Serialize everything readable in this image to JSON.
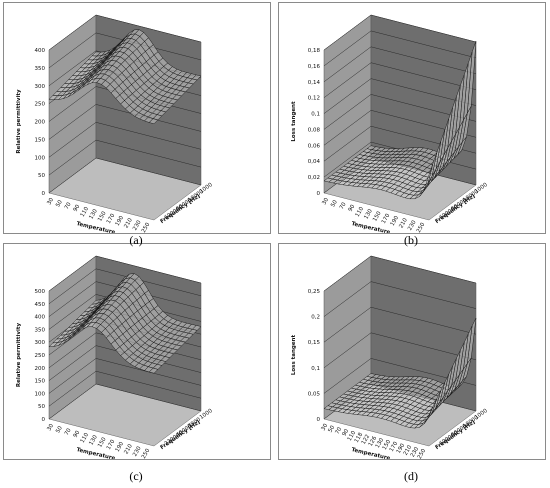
{
  "captions": [
    "(a)",
    "(b)",
    "(c)",
    "(d)"
  ],
  "chart_data": [
    {
      "type": "surface",
      "ylabel": "Relative permittivity",
      "xlabel": "Temperature",
      "zlabel": "Frequency [Hz]",
      "ylim": [
        0,
        400
      ],
      "y_ticks": [
        "0",
        "50",
        "100",
        "150",
        "200",
        "250",
        "300",
        "350",
        "400"
      ],
      "x_ticks": [
        "30",
        "50",
        "70",
        "90",
        "110",
        "130",
        "150",
        "170",
        "190",
        "210",
        "230",
        "250"
      ],
      "z_ticks": [
        "1000",
        "10000",
        "60000",
        "600000"
      ],
      "peak": {
        "value": 390,
        "temperature": 120
      },
      "low_t_value": 295,
      "high_t_value": 305,
      "high_freq_factor": 0.88,
      "colors": {
        "back_wall": "#6e6e6e",
        "side_wall": "#9b9b9b",
        "floor": "#bdbdbd",
        "mesh": "#111111"
      }
    },
    {
      "type": "surface",
      "ylabel": "Loss tangent",
      "xlabel": "Temperature",
      "zlabel": "Frequency [Hz]",
      "ylim": [
        0,
        0.18
      ],
      "y_ticks": [
        "0",
        "0,02",
        "0,04",
        "0,06",
        "0,08",
        "0,1",
        "0,12",
        "0,14",
        "0,16",
        "0,18"
      ],
      "x_ticks": [
        "30",
        "50",
        "70",
        "90",
        "110",
        "130",
        "150",
        "170",
        "190",
        "210",
        "230",
        "250"
      ],
      "z_ticks": [
        "1000",
        "10000",
        "60000",
        "600000"
      ],
      "baseline": 0.015,
      "hump": {
        "value": 0.03,
        "temperature": 150
      },
      "end_value": 0.18,
      "colors": {
        "back_wall": "#6e6e6e",
        "side_wall": "#9b9b9b",
        "floor": "#bdbdbd",
        "mesh": "#111111"
      }
    },
    {
      "type": "surface",
      "ylabel": "Relative permittivity",
      "xlabel": "Temperature",
      "zlabel": "Frequency [Hz]",
      "ylim": [
        0,
        500
      ],
      "y_ticks": [
        "0",
        "50",
        "100",
        "150",
        "200",
        "250",
        "300",
        "350",
        "400",
        "450",
        "500"
      ],
      "x_ticks": [
        "30",
        "50",
        "70",
        "90",
        "110",
        "130",
        "150",
        "170",
        "190",
        "210",
        "230",
        "250"
      ],
      "z_ticks": [
        "1000",
        "7900",
        "40000",
        "230000"
      ],
      "peak": {
        "value": 470,
        "temperature": 110
      },
      "low_t_value": 320,
      "high_t_value": 330,
      "high_freq_factor": 0.86,
      "colors": {
        "back_wall": "#6e6e6e",
        "side_wall": "#9b9b9b",
        "floor": "#bdbdbd",
        "mesh": "#111111"
      }
    },
    {
      "type": "surface",
      "ylabel": "Loss tangent",
      "xlabel": "Temperature",
      "zlabel": "Frequency [Hz]",
      "ylim": [
        0,
        0.25
      ],
      "y_ticks": [
        "0",
        "0,05",
        "0,1",
        "0,15",
        "0,2",
        "0,25"
      ],
      "x_ticks": [
        "30",
        "50",
        "70",
        "90",
        "110",
        "118",
        "122",
        "126",
        "130",
        "150",
        "170",
        "190",
        "210",
        "230",
        "250"
      ],
      "z_ticks": [
        "1000",
        "10000",
        "60000",
        "600000"
      ],
      "baseline": 0.02,
      "hump": {
        "value": 0.04,
        "temperature": 150
      },
      "end_value": 0.18,
      "colors": {
        "back_wall": "#6e6e6e",
        "side_wall": "#9b9b9b",
        "floor": "#bdbdbd",
        "mesh": "#111111"
      }
    }
  ]
}
